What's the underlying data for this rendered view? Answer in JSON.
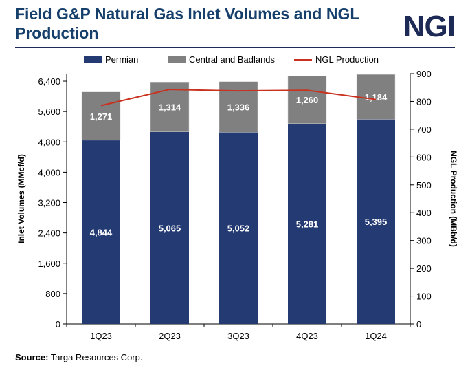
{
  "title": "Field G&P Natural Gas Inlet Volumes and NGL Production",
  "logo": "NGI",
  "source_label": "Source:",
  "source_text": "Targa Resources Corp.",
  "chart_data": {
    "type": "bar",
    "stacked": true,
    "categories": [
      "1Q23",
      "2Q23",
      "3Q23",
      "4Q23",
      "1Q24"
    ],
    "series": [
      {
        "name": "Permian",
        "type": "bar",
        "axis": "left",
        "color": "#243a73",
        "values": [
          4844,
          5065,
          5052,
          5281,
          5395
        ]
      },
      {
        "name": "Central and Badlands",
        "type": "bar",
        "axis": "left",
        "color": "#808080",
        "values": [
          1271,
          1314,
          1336,
          1260,
          1184
        ]
      },
      {
        "name": "NGL Production",
        "type": "line",
        "axis": "right",
        "color": "#c8321e",
        "values": [
          785,
          843,
          838,
          840,
          807
        ]
      }
    ],
    "data_labels": {
      "Permian": [
        "4,844",
        "5,065",
        "5,052",
        "5,281",
        "5,395"
      ],
      "Central and Badlands": [
        "1,271",
        "1,314",
        "1,336",
        "1,260",
        "1,184"
      ]
    },
    "ylabel": "Inlet Volumes (MMcf/d)",
    "y2label": "NGL Production (MBb/d)",
    "ylim": [
      0,
      6600
    ],
    "y2lim": [
      0,
      900
    ],
    "yticks": [
      0,
      800,
      1600,
      2400,
      3200,
      4000,
      4800,
      5600,
      6400
    ],
    "ytick_labels": [
      "0",
      "800",
      "1,600",
      "2,400",
      "3,200",
      "4,000",
      "4,800",
      "5,600",
      "6,400"
    ],
    "y2ticks": [
      0,
      100,
      200,
      300,
      400,
      500,
      600,
      700,
      800,
      900
    ],
    "y2tick_labels": [
      "0",
      "100",
      "200",
      "300",
      "400",
      "500",
      "600",
      "700",
      "800",
      "900"
    ],
    "grid": false,
    "legend": "top"
  }
}
